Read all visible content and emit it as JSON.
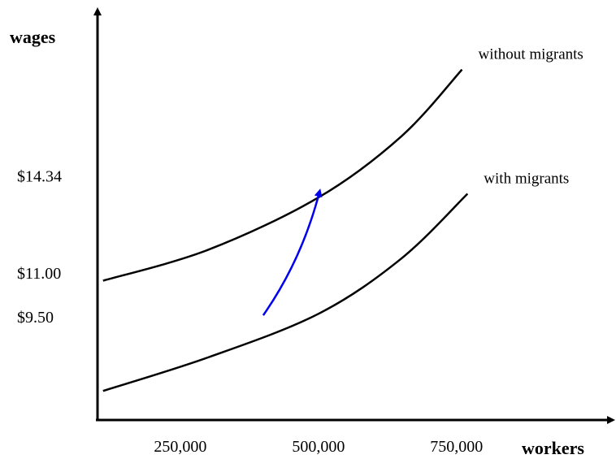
{
  "chart_data": {
    "type": "line",
    "title": "",
    "xlabel": "workers",
    "ylabel": "wages",
    "xlim": [
      100000,
      1030000
    ],
    "ylim": [
      5.95,
      20.0
    ],
    "x_ticks": [
      {
        "value": 250000,
        "label": "250,000"
      },
      {
        "value": 500000,
        "label": "500,000"
      },
      {
        "value": 750000,
        "label": "750,000"
      }
    ],
    "y_ticks": [
      {
        "value": 9.5,
        "label": "$9.50"
      },
      {
        "value": 11.0,
        "label": "$11.00"
      },
      {
        "value": 14.34,
        "label": "$14.34"
      }
    ],
    "grid": false,
    "series": [
      {
        "name": "without migrants",
        "color": "#000000",
        "points": [
          [
            110000,
            10.74
          ],
          [
            300000,
            11.8
          ],
          [
            500000,
            13.6
          ],
          [
            650000,
            15.7
          ],
          [
            760000,
            18.0
          ]
        ]
      },
      {
        "name": "with migrants",
        "color": "#000000",
        "points": [
          [
            110000,
            6.95
          ],
          [
            300000,
            8.1
          ],
          [
            500000,
            9.6
          ],
          [
            650000,
            11.5
          ],
          [
            770000,
            13.73
          ]
        ]
      }
    ],
    "annotations": [
      {
        "type": "arrow",
        "color": "#0000ee",
        "from": [
          400000,
          9.55
        ],
        "control": [
          470000,
          11.45
        ],
        "to": [
          502000,
          13.8
        ]
      }
    ]
  }
}
